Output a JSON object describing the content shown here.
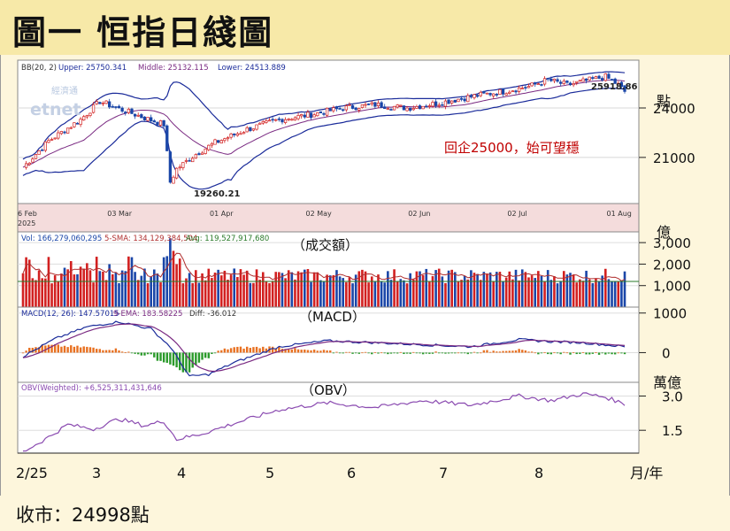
{
  "title": "圖一  恒指日綫圖",
  "footer": "收市：24998點",
  "colors": {
    "up": "#d22020",
    "down": "#1a46a8",
    "band": "#1a2b9a",
    "mid": "#7a2a82",
    "sma": "#b03030",
    "avg": "#2a7a2a",
    "hist_pos": "#e87020",
    "hist_neg": "#2a9a2a",
    "obv": "#8a4ab0",
    "annot": "#c00000"
  },
  "brand": "經濟通 etnet",
  "chart_data": [
    {
      "type": "candlestick",
      "legend": {
        "bb": "BB(20, 2)",
        "upper": "Upper: 25750.341",
        "middle": "Middle: 25132.115",
        "lower": "Lower: 24513.889"
      },
      "unit_label": "點",
      "yticks": [
        {
          "v": 24000,
          "label": "24000"
        },
        {
          "v": 21000,
          "label": "21000"
        }
      ],
      "ylim": [
        18200,
        26900
      ],
      "date_labels": [
        "6 Feb",
        "03 Mar",
        "01 Apr",
        "02 May",
        "02 Jun",
        "02 Jul",
        "01 Aug"
      ],
      "year_label": "2025",
      "annotation": "回企25000，始可望穩",
      "high_label": "25918.86",
      "low_label": "19260.21"
    },
    {
      "type": "bar",
      "legend": {
        "vol": "Vol: 166,279,060,295",
        "sma": "5-SMA: 134,129,384,504",
        "avg": "Avg: 119,527,917,680"
      },
      "panel_title": "（成交額）",
      "unit_label": "億",
      "yticks": [
        {
          "v": 3000,
          "label": "3,000"
        },
        {
          "v": 2000,
          "label": "2,000"
        },
        {
          "v": 1000,
          "label": "1,000"
        }
      ],
      "ylim": [
        0,
        3500
      ]
    },
    {
      "type": "line",
      "legend": {
        "macd": "MACD(12, 26): 147.57015",
        "ema": "9-EMA: 183.58225",
        "diff": "Diff: -36.012"
      },
      "panel_title": "（MACD）",
      "yticks": [
        {
          "v": 1000,
          "label": "1000"
        },
        {
          "v": 0,
          "label": "0"
        }
      ],
      "ylim": [
        -750,
        1150
      ]
    },
    {
      "type": "line",
      "legend": {
        "obv": "OBV(Weighted): +6,525,311,431,646"
      },
      "panel_title": "（OBV）",
      "unit_label": "萬億",
      "yticks": [
        {
          "v": 3.0,
          "label": "3.0"
        },
        {
          "v": 1.5,
          "label": "1.5"
        }
      ],
      "ylim": [
        0.5,
        3.6
      ]
    }
  ],
  "xaxis": {
    "labels": [
      "2/25",
      "3",
      "4",
      "5",
      "6",
      "7",
      "8"
    ],
    "suffix": "月/年"
  }
}
